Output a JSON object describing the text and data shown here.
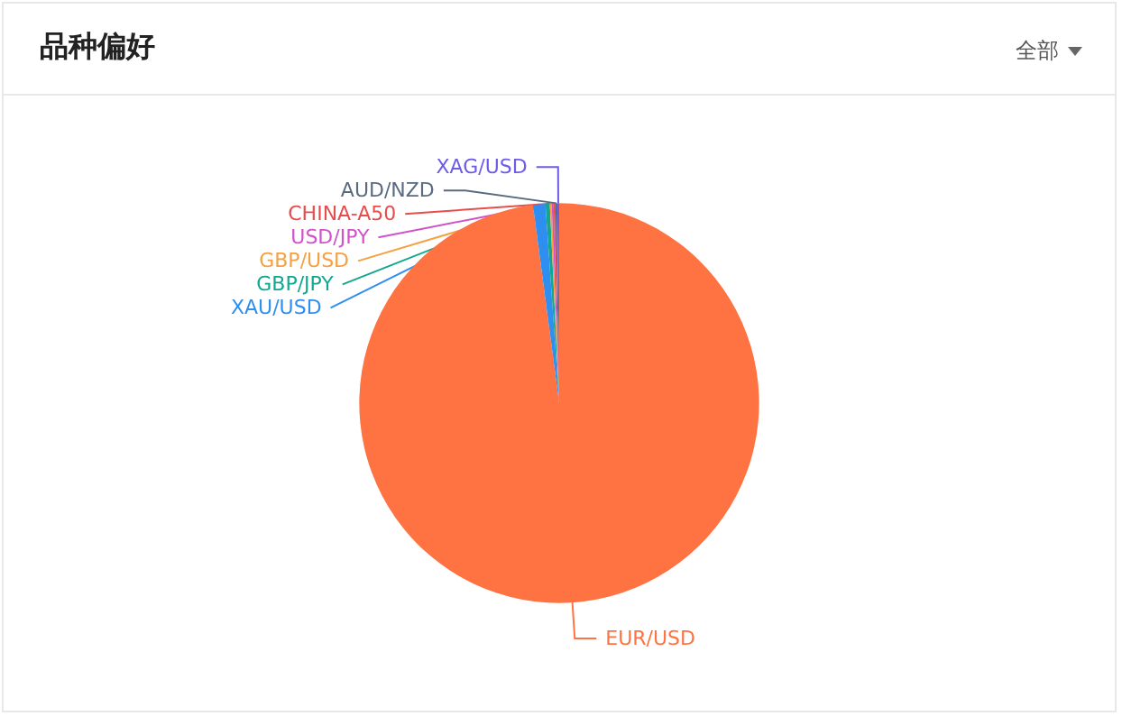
{
  "chart_data": {
    "type": "pie",
    "title": "品种偏好",
    "annotations": [
      "全部"
    ],
    "categories": [
      "EUR/USD",
      "XAU/USD",
      "GBP/JPY",
      "GBP/USD",
      "USD/JPY",
      "CHINA-A50",
      "AUD/NZD",
      "XAG/USD"
    ],
    "values": [
      97.9,
      1.0,
      0.35,
      0.15,
      0.15,
      0.15,
      0.15,
      0.15
    ],
    "colors": [
      "#ff7242",
      "#2f8ff0",
      "#11a88f",
      "#f5a142",
      "#d152c9",
      "#e84d4d",
      "#5a6a80",
      "#6c5ce7"
    ],
    "legend": false
  }
}
